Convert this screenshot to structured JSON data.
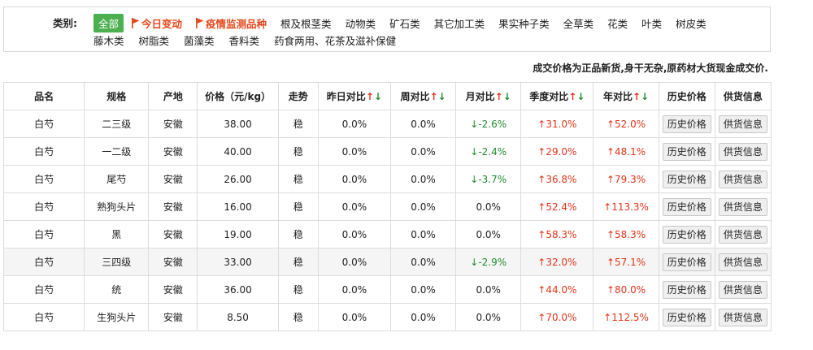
{
  "categories": {
    "title": "类别:",
    "row1": [
      {
        "label": "全部",
        "style": "active"
      },
      {
        "label": "今日变动",
        "style": "flag"
      },
      {
        "label": "疫情监测品种",
        "style": "flag"
      },
      {
        "label": "根及根茎类",
        "style": "plain"
      },
      {
        "label": "动物类",
        "style": "plain"
      },
      {
        "label": "矿石类",
        "style": "plain"
      },
      {
        "label": "其它加工类",
        "style": "plain"
      },
      {
        "label": "果实种子类",
        "style": "plain"
      },
      {
        "label": "全草类",
        "style": "plain"
      },
      {
        "label": "花类",
        "style": "plain"
      },
      {
        "label": "叶类",
        "style": "plain"
      },
      {
        "label": "树皮类",
        "style": "plain"
      }
    ],
    "row2": [
      {
        "label": "藤木类"
      },
      {
        "label": "树脂类"
      },
      {
        "label": "菌藻类"
      },
      {
        "label": "香料类"
      },
      {
        "label": "药食两用、花茶及滋补保健"
      }
    ]
  },
  "notice": "成交价格为正品新货,身干无杂,原药材大货现金成交价.",
  "colors": {
    "up": "#e2341a",
    "down": "#1f8b2e",
    "active": "#4caf50",
    "flag": "#e4471c"
  },
  "table": {
    "headers": [
      "品名",
      "规格",
      "产地",
      "价格（元/kg）",
      "走势",
      "昨日对比",
      "周对比",
      "月对比",
      "季度对比",
      "年对比",
      "历史价格",
      "供货信息"
    ],
    "arrow_up": "↑",
    "arrow_down": "↓",
    "button_history": "历史价格",
    "button_supply": "供货信息",
    "rows": [
      {
        "name": "白芍",
        "spec": "二三级",
        "origin": "安徽",
        "price": "38.00",
        "trend": "稳",
        "day": "0.0%",
        "week": "0.0%",
        "month": "↓-2.6%",
        "quarter": "↑31.0%",
        "year": "↑52.0%"
      },
      {
        "name": "白芍",
        "spec": "一二级",
        "origin": "安徽",
        "price": "40.00",
        "trend": "稳",
        "day": "0.0%",
        "week": "0.0%",
        "month": "↓-2.4%",
        "quarter": "↑29.0%",
        "year": "↑48.1%"
      },
      {
        "name": "白芍",
        "spec": "尾芍",
        "origin": "安徽",
        "price": "26.00",
        "trend": "稳",
        "day": "0.0%",
        "week": "0.0%",
        "month": "↓-3.7%",
        "quarter": "↑36.8%",
        "year": "↑79.3%"
      },
      {
        "name": "白芍",
        "spec": "熟狗头片",
        "origin": "安徽",
        "price": "16.00",
        "trend": "稳",
        "day": "0.0%",
        "week": "0.0%",
        "month": "0.0%",
        "quarter": "↑52.4%",
        "year": "↑113.3%"
      },
      {
        "name": "白芍",
        "spec": "黑",
        "origin": "安徽",
        "price": "19.00",
        "trend": "稳",
        "day": "0.0%",
        "week": "0.0%",
        "month": "0.0%",
        "quarter": "↑58.3%",
        "year": "↑58.3%"
      },
      {
        "name": "白芍",
        "spec": "三四级",
        "origin": "安徽",
        "price": "33.00",
        "trend": "稳",
        "day": "0.0%",
        "week": "0.0%",
        "month": "↓-2.9%",
        "quarter": "↑32.0%",
        "year": "↑57.1%"
      },
      {
        "name": "白芍",
        "spec": "统",
        "origin": "安徽",
        "price": "36.00",
        "trend": "稳",
        "day": "0.0%",
        "week": "0.0%",
        "month": "0.0%",
        "quarter": "↑44.0%",
        "year": "↑80.0%"
      },
      {
        "name": "白芍",
        "spec": "生狗头片",
        "origin": "安徽",
        "price": "8.50",
        "trend": "稳",
        "day": "0.0%",
        "week": "0.0%",
        "month": "0.0%",
        "quarter": "↑70.0%",
        "year": "↑112.5%"
      }
    ]
  }
}
